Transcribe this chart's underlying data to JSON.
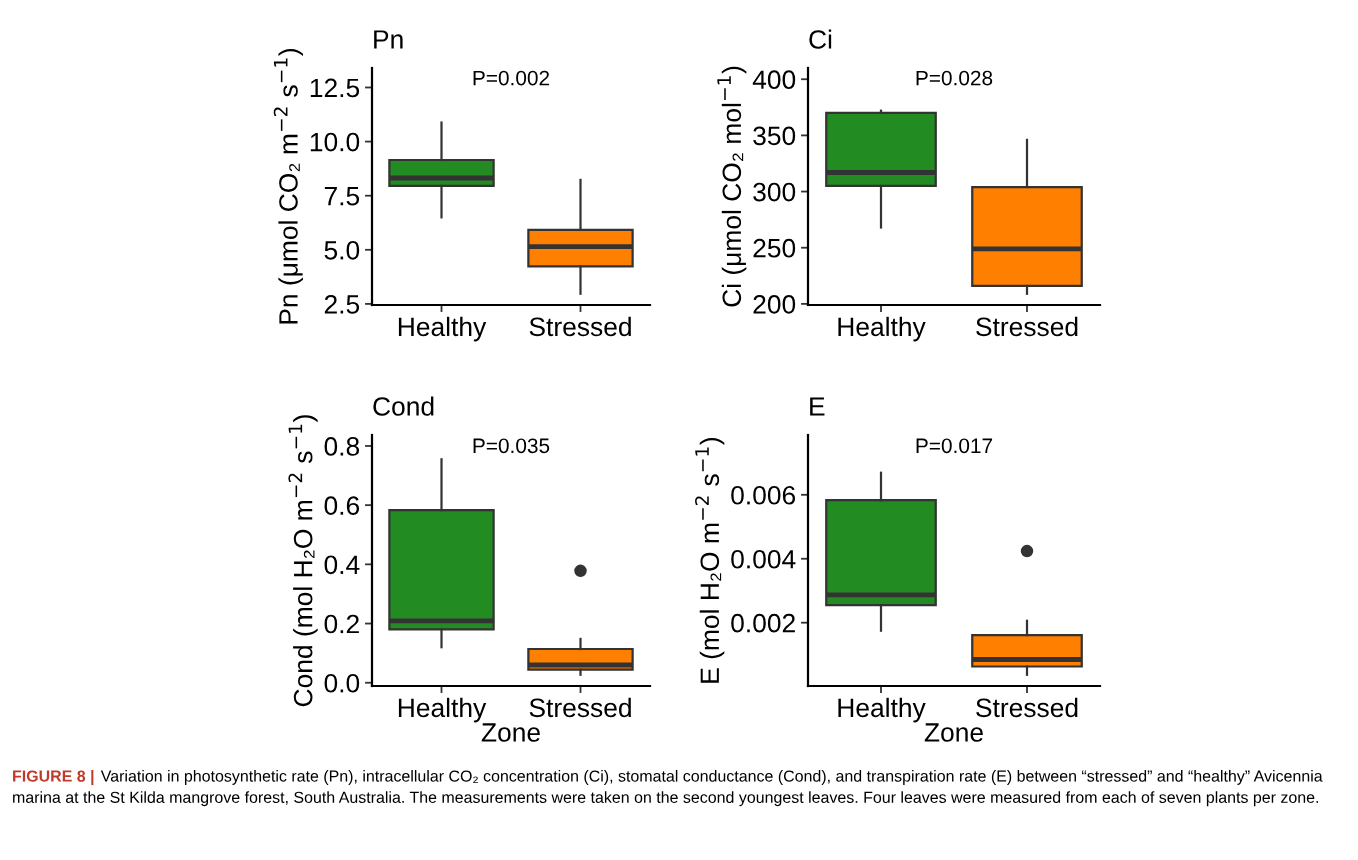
{
  "chart_data": [
    {
      "type": "box",
      "title": "Pn",
      "ylabel": "Pn (μmol CO₂ m$^{−2}$ s$^{−1}$)",
      "categories": [
        "Healthy",
        "Stressed"
      ],
      "colors": [
        "#228b22",
        "#ff7f00"
      ],
      "ylim": [
        2.45,
        13.4
      ],
      "yticks": [
        2.5,
        {
          "value": 5,
          "label": "5.0"
        },
        7.5,
        {
          "value": 10,
          "label": "10.0"
        },
        12.5
      ],
      "grid": false,
      "legend": false,
      "annotations": [
        "P=0.002"
      ],
      "boxes": [
        {
          "low": 6.5,
          "q1": 7.95,
          "median": 8.32,
          "q3": 9.15,
          "high": 10.88
        },
        {
          "low": 2.97,
          "q1": 4.23,
          "median": 5.15,
          "q3": 5.92,
          "high": 8.23
        }
      ]
    },
    {
      "type": "box",
      "title": "Ci",
      "ylabel": "Ci (μmol CO₂ mol$^{−1}$)",
      "categories": [
        "Healthy",
        "Stressed"
      ],
      "colors": [
        "#228b22",
        "#ff7f00"
      ],
      "ylim": [
        199,
        410
      ],
      "yticks": [
        200,
        250,
        300,
        350,
        400
      ],
      "grid": false,
      "legend": false,
      "annotations": [
        "P=0.028"
      ],
      "boxes": [
        {
          "low": 268,
          "q1": 305,
          "median": 317,
          "q3": 370,
          "high": 372
        },
        {
          "low": 209,
          "q1": 216,
          "median": 249,
          "q3": 304,
          "high": 346
        }
      ]
    },
    {
      "type": "box",
      "title": "Cond",
      "xlabel": "Zone",
      "ylabel": "Cond (mol H₂O m$^{−2}$ s$^{−1}$)",
      "categories": [
        "Healthy",
        "Stressed"
      ],
      "colors": [
        "#228b22",
        "#ff7f00"
      ],
      "ylim": [
        -0.011,
        0.837
      ],
      "yticks": [
        {
          "value": 0,
          "label": "0.0"
        },
        0.2,
        0.4,
        0.6,
        0.8
      ],
      "grid": false,
      "legend": false,
      "marker": "circle",
      "annotations": [
        "P=0.035"
      ],
      "boxes": [
        {
          "low": 0.12,
          "q1": 0.18,
          "median": 0.209,
          "q3": 0.583,
          "high": 0.755
        },
        {
          "low": 0.027,
          "q1": 0.044,
          "median": 0.06,
          "q3": 0.114,
          "high": 0.148,
          "outliers": [
            0.378
          ]
        }
      ]
    },
    {
      "type": "box",
      "title": "E",
      "xlabel": "Zone",
      "ylabel": "E (mol H₂O m$^{−2}$ s$^{−1}$)",
      "categories": [
        "Healthy",
        "Stressed"
      ],
      "colors": [
        "#228b22",
        "#ff7f00"
      ],
      "ylim": [
        2e-05,
        0.00787
      ],
      "yticks": [
        0.002,
        0.004,
        0.006
      ],
      "grid": false,
      "legend": false,
      "marker": "circle",
      "annotations": [
        "P=0.017",
        "FIGURE 8 |",
        "Variation in photosynthetic rate (Pn), intracellular CO₂ concentration (Ci), stomatal conductance (Cond), and transpiration rate (E) between “stressed” and “healthy” Avicennia marina at the St Kilda mangrove forest, South Australia. The measurements were taken on the second youngest leaves. Four leaves were measured from each of seven plants per zone."
      ],
      "boxes": [
        {
          "low": 0.00175,
          "q1": 0.00255,
          "median": 0.00287,
          "q3": 0.00583,
          "high": 0.00669
        },
        {
          "low": 0.00037,
          "q1": 0.00063,
          "median": 0.00085,
          "q3": 0.00161,
          "high": 0.00206,
          "outliers": [
            0.00424
          ]
        }
      ]
    }
  ]
}
